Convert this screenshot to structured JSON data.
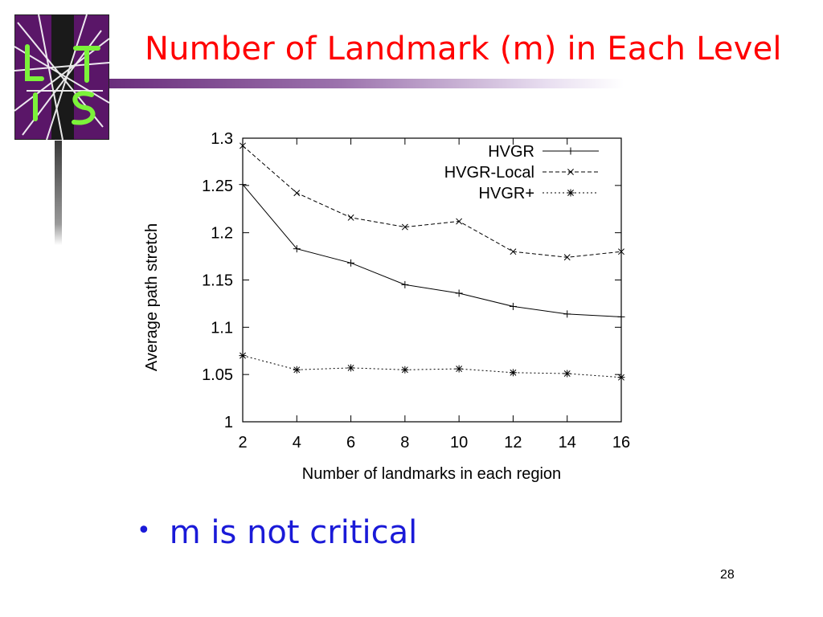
{
  "slide": {
    "title": "Number of Landmark (m) in Each Level",
    "bullet": "m is not critical",
    "page_number": "28",
    "title_color": "#ff0000",
    "bullet_color": "#1a1ad8",
    "logo_letters": "L T I S"
  },
  "chart_data": {
    "type": "line",
    "title": "",
    "xlabel": "Number of landmarks in each region",
    "ylabel": "Average path stretch",
    "xlim": [
      2,
      16
    ],
    "ylim": [
      1,
      1.3
    ],
    "xticks": [
      2,
      4,
      6,
      8,
      10,
      12,
      14,
      16
    ],
    "yticks": [
      1,
      1.05,
      1.1,
      1.15,
      1.2,
      1.25,
      1.3
    ],
    "ytick_labels": [
      "1",
      "1.05",
      "1.1",
      "1.15",
      "1.2",
      "1.25",
      "1.3"
    ],
    "x": [
      2,
      4,
      6,
      8,
      10,
      12,
      14,
      16
    ],
    "legend_position": "top-right",
    "grid": false,
    "series": [
      {
        "name": "HVGR",
        "marker": "plus",
        "dash": "solid",
        "values": [
          1.251,
          1.183,
          1.168,
          1.145,
          1.136,
          1.122,
          1.114,
          1.111
        ]
      },
      {
        "name": "HVGR-Local",
        "marker": "cross",
        "dash": "dashed",
        "values": [
          1.292,
          1.242,
          1.216,
          1.206,
          1.212,
          1.18,
          1.174,
          1.18
        ]
      },
      {
        "name": "HVGR+",
        "marker": "star",
        "dash": "dotted",
        "values": [
          1.07,
          1.055,
          1.057,
          1.055,
          1.056,
          1.052,
          1.051,
          1.047
        ]
      }
    ]
  }
}
